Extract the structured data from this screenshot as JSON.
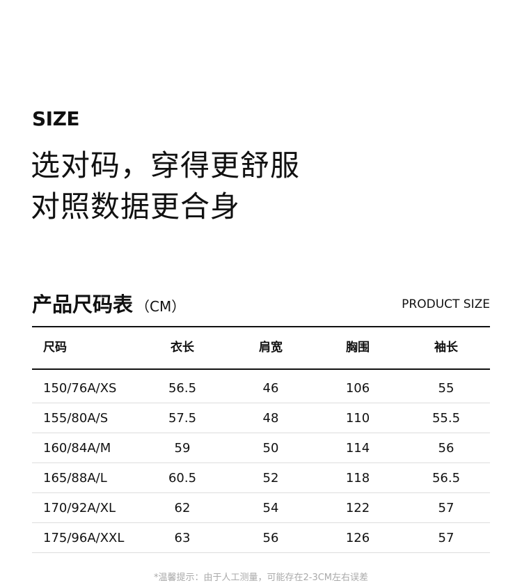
{
  "header": {
    "label": "SIZE",
    "headline_1": "选对码，穿得更舒服",
    "headline_2": "对照数据更合身"
  },
  "table": {
    "title": "产品尺码表",
    "unit": "（CM）",
    "subtitle": "PRODUCT SIZE",
    "columns": [
      "尺码",
      "衣长",
      "肩宽",
      "胸围",
      "袖长"
    ],
    "rows": [
      [
        "150/76A/XS",
        "56.5",
        "46",
        "106",
        "55"
      ],
      [
        "155/80A/S",
        "57.5",
        "48",
        "110",
        "55.5"
      ],
      [
        "160/84A/M",
        "59",
        "50",
        "114",
        "56"
      ],
      [
        "165/88A/L",
        "60.5",
        "52",
        "118",
        "56.5"
      ],
      [
        "170/92A/XL",
        "62",
        "54",
        "122",
        "57"
      ],
      [
        "175/96A/XXL",
        "63",
        "56",
        "126",
        "57"
      ]
    ]
  },
  "footnote": "*温馨提示：由于人工测量，可能存在2-3CM左右误差"
}
